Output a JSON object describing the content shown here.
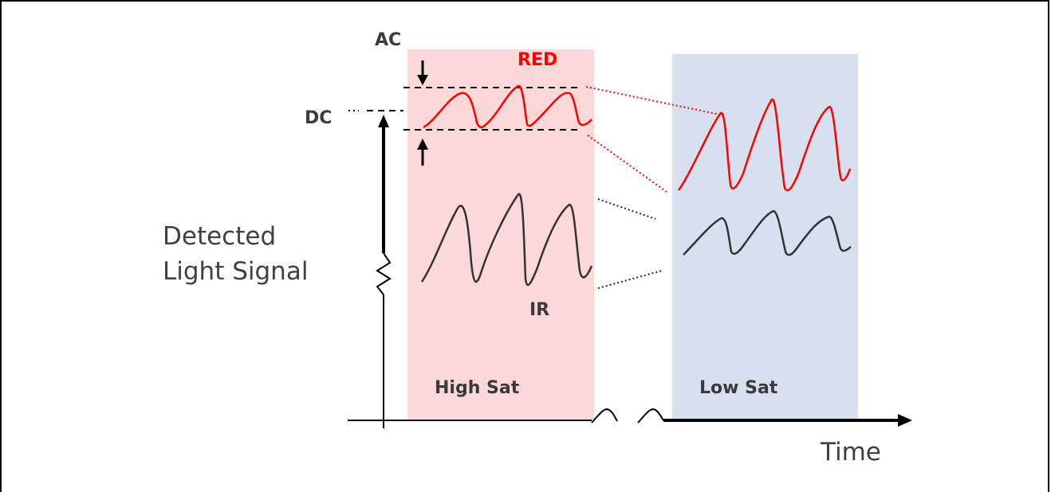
{
  "labels": {
    "ac": "AC",
    "dc": "DC",
    "red": "RED",
    "ir": "IR",
    "y_axis_line1": "Detected",
    "y_axis_line2": "Light Signal",
    "x_axis": "Time",
    "high_sat": "High Sat",
    "low_sat": "Low Sat"
  },
  "colors": {
    "high_sat_region": "#fdd8d8",
    "low_sat_region": "#d6e0ee",
    "red_signal": "#ff0000",
    "ir_signal": "#333333",
    "axis": "#000000"
  }
}
